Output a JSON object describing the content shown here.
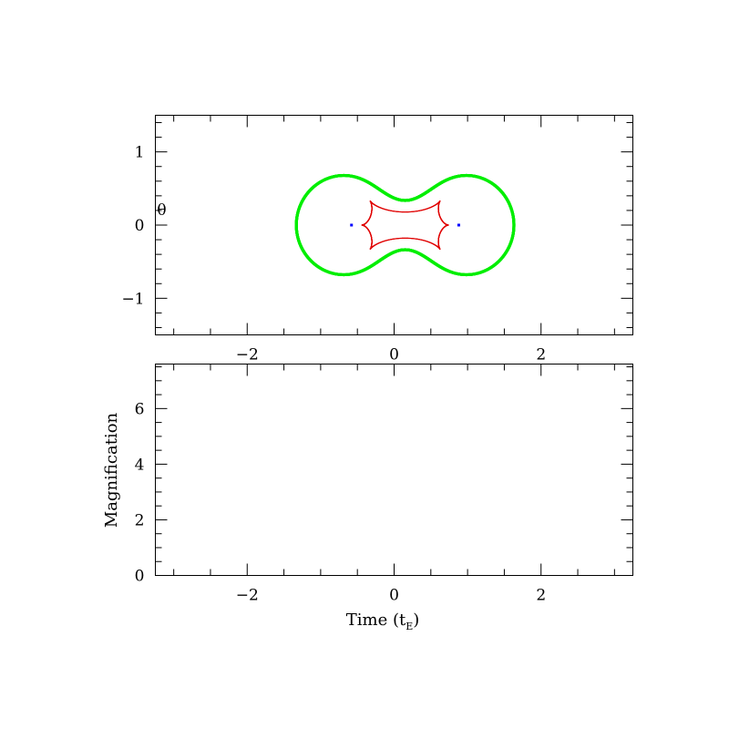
{
  "chart_data": [
    {
      "type": "line",
      "panel": "caustic-plane",
      "xlim": [
        -3.25,
        3.25
      ],
      "ylim": [
        -1.5,
        1.5
      ],
      "x_major_ticks": [
        -2,
        0,
        2
      ],
      "x_tick_labels": [
        "−2",
        "0",
        "2"
      ],
      "y_major_ticks": [
        -1,
        0,
        1
      ],
      "y_tick_labels": [
        "−1",
        "0",
        "1"
      ],
      "xlabel": "",
      "ylabel": "",
      "marker_label": "θ",
      "marker_position": [
        -3.2,
        0.2
      ],
      "lens_separation": 1.47,
      "lens_mass_ratio": 1.0,
      "critical_curve_color": "#00ee00",
      "caustic_color": "#e00000",
      "lens_positions": [
        {
          "x": -0.58,
          "y": 0.0,
          "color": "#0000ff"
        },
        {
          "x": 0.88,
          "y": 0.0,
          "color": "#0000ff"
        }
      ],
      "grid": false,
      "legend": "none"
    },
    {
      "type": "line",
      "panel": "light-curve",
      "xlim": [
        -3.25,
        3.25
      ],
      "ylim": [
        0,
        7.6
      ],
      "x_major_ticks": [
        -2,
        0,
        2
      ],
      "x_tick_labels": [
        "−2",
        "0",
        "2"
      ],
      "y_major_ticks": [
        0,
        2,
        4,
        6
      ],
      "y_tick_labels": [
        "0",
        "2",
        "4",
        "6"
      ],
      "xlabel": "Time (t",
      "xlabel_sub": "E",
      "xlabel_close": ")",
      "ylabel": "Magnification",
      "series": [],
      "grid": false,
      "legend": "none"
    }
  ]
}
